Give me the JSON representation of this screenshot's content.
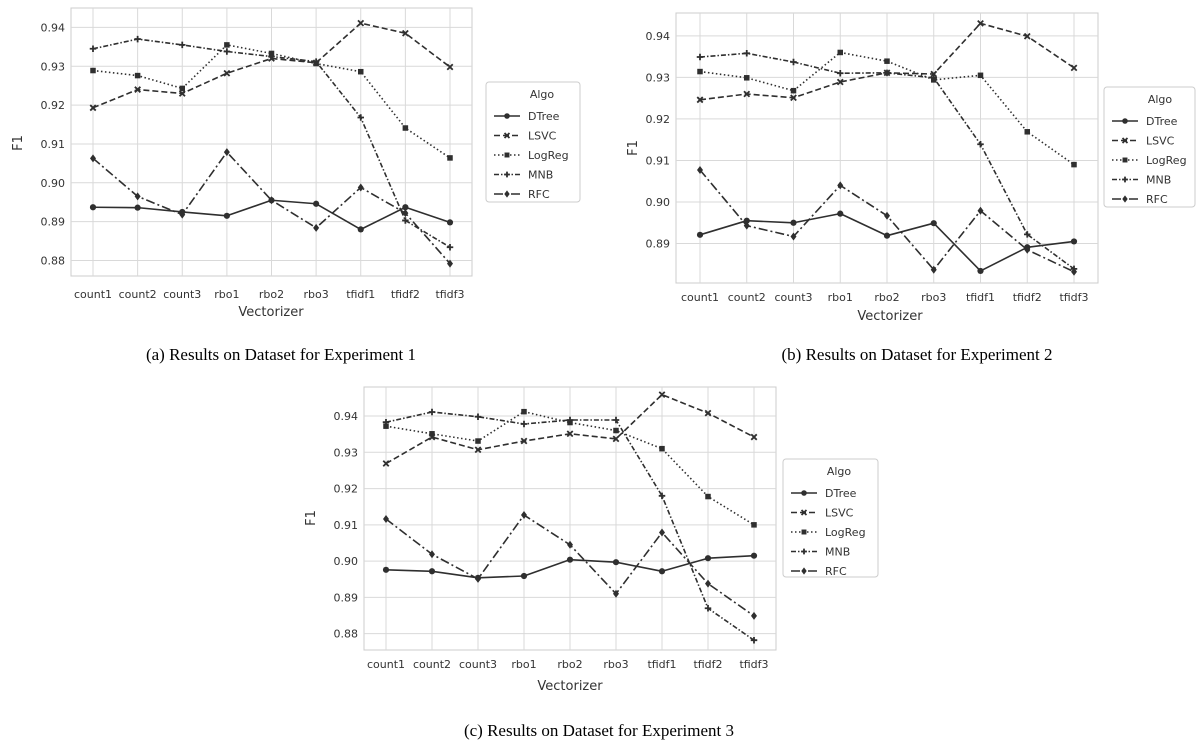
{
  "chart_data": [
    {
      "type": "line",
      "caption": "(a) Results on Dataset for Experiment 1",
      "xlabel": "Vectorizer",
      "ylabel": "F1",
      "categories": [
        "count1",
        "count2",
        "count3",
        "rbo1",
        "rbo2",
        "rbo3",
        "tfidf1",
        "tfidf2",
        "tfidf3"
      ],
      "ylim": [
        0.876,
        0.945
      ],
      "yticks": [
        "0.88",
        "0.89",
        "0.90",
        "0.91",
        "0.92",
        "0.93",
        "0.94"
      ],
      "grid": true,
      "legend_title": "Algo",
      "legend_position": "right",
      "series": [
        {
          "name": "DTree",
          "values": [
            0.8937,
            0.8936,
            0.8925,
            0.8915,
            0.8955,
            0.8946,
            0.888,
            0.8937,
            0.8898
          ]
        },
        {
          "name": "LSVC",
          "values": [
            0.9193,
            0.924,
            0.923,
            0.9282,
            0.932,
            0.9309,
            0.9411,
            0.9385,
            0.9298
          ]
        },
        {
          "name": "LogReg",
          "values": [
            0.9289,
            0.9276,
            0.9243,
            0.9355,
            0.9333,
            0.9307,
            0.9286,
            0.9141,
            0.9064
          ]
        },
        {
          "name": "MNB",
          "values": [
            0.9345,
            0.937,
            0.9355,
            0.9338,
            0.9325,
            0.9312,
            0.9168,
            0.8903,
            0.8834
          ]
        },
        {
          "name": "RFC",
          "values": [
            0.9063,
            0.8965,
            0.8918,
            0.9079,
            0.8955,
            0.8884,
            0.8988,
            0.8922,
            0.8792
          ]
        }
      ]
    },
    {
      "type": "line",
      "caption": "(b) Results on Dataset for Experiment 2",
      "xlabel": "Vectorizer",
      "ylabel": "F1",
      "categories": [
        "count1",
        "count2",
        "count3",
        "rbo1",
        "rbo2",
        "rbo3",
        "tfidf1",
        "tfidf2",
        "tfidf3"
      ],
      "ylim": [
        0.8805,
        0.9455
      ],
      "yticks": [
        "0.89",
        "0.90",
        "0.91",
        "0.92",
        "0.93",
        "0.94"
      ],
      "grid": true,
      "legend_title": "Algo",
      "legend_position": "right",
      "series": [
        {
          "name": "DTree",
          "values": [
            0.8921,
            0.8955,
            0.895,
            0.8972,
            0.8919,
            0.8949,
            0.8834,
            0.8891,
            0.8905
          ]
        },
        {
          "name": "LSVC",
          "values": [
            0.9246,
            0.926,
            0.9251,
            0.9289,
            0.9311,
            0.9308,
            0.943,
            0.9399,
            0.9323
          ]
        },
        {
          "name": "LogReg",
          "values": [
            0.9314,
            0.9299,
            0.9268,
            0.936,
            0.9339,
            0.9294,
            0.9305,
            0.9169,
            0.909
          ]
        },
        {
          "name": "MNB",
          "values": [
            0.9349,
            0.9358,
            0.9337,
            0.931,
            0.9311,
            0.9299,
            0.9139,
            0.8922,
            0.8839
          ]
        },
        {
          "name": "RFC",
          "values": [
            0.9077,
            0.8943,
            0.8917,
            0.904,
            0.8967,
            0.8837,
            0.8979,
            0.8885,
            0.8832
          ]
        }
      ]
    },
    {
      "type": "line",
      "caption": "(c) Results on Dataset for Experiment 3",
      "xlabel": "Vectorizer",
      "ylabel": "F1",
      "categories": [
        "count1",
        "count2",
        "count3",
        "rbo1",
        "rbo2",
        "rbo3",
        "tfidf1",
        "tfidf2",
        "tfidf3"
      ],
      "ylim": [
        0.8755,
        0.948
      ],
      "yticks": [
        "0.88",
        "0.89",
        "0.90",
        "0.91",
        "0.92",
        "0.93",
        "0.94"
      ],
      "grid": true,
      "legend_title": "Algo",
      "legend_position": "right",
      "series": [
        {
          "name": "DTree",
          "values": [
            0.8976,
            0.8972,
            0.8954,
            0.8959,
            0.9004,
            0.8997,
            0.8972,
            0.9008,
            0.9015
          ]
        },
        {
          "name": "LSVC",
          "values": [
            0.9269,
            0.9342,
            0.9307,
            0.9331,
            0.9351,
            0.9337,
            0.9459,
            0.9408,
            0.9342
          ]
        },
        {
          "name": "LogReg",
          "values": [
            0.9372,
            0.9351,
            0.9331,
            0.9412,
            0.9382,
            0.936,
            0.931,
            0.9178,
            0.91
          ]
        },
        {
          "name": "MNB",
          "values": [
            0.9383,
            0.9411,
            0.9398,
            0.9378,
            0.9389,
            0.9389,
            0.918,
            0.887,
            0.8782
          ]
        },
        {
          "name": "RFC",
          "values": [
            0.9116,
            0.9019,
            0.8951,
            0.9127,
            0.9045,
            0.891,
            0.9079,
            0.8938,
            0.8849
          ]
        }
      ]
    }
  ]
}
